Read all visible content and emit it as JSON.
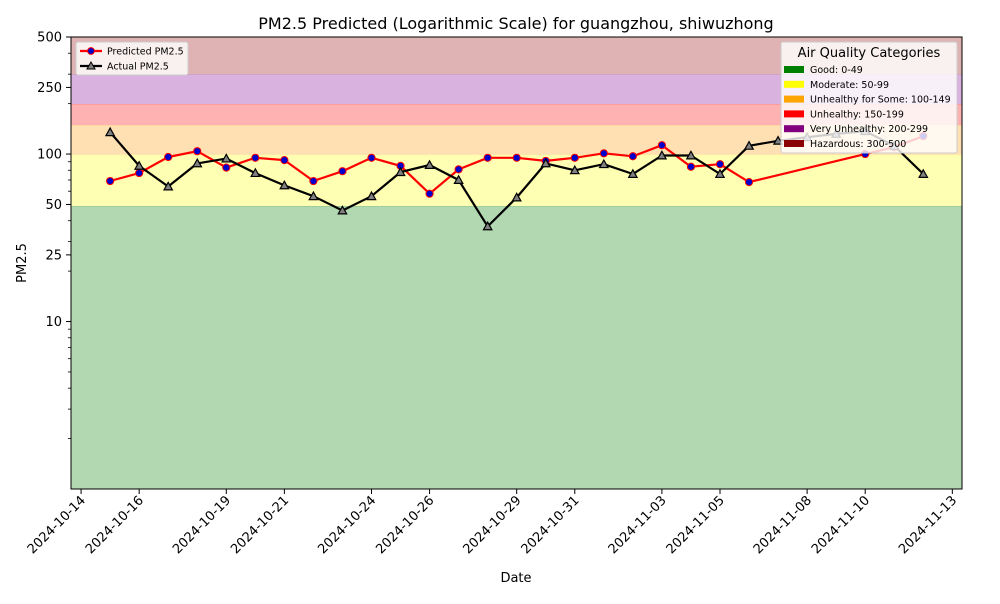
{
  "chart_data": {
    "type": "line",
    "title": "PM2.5 Predicted (Logarithmic Scale) for guangzhou, shiwuzhong",
    "xlabel": "Date",
    "ylabel": "PM2.5",
    "y_scale": "log",
    "ylim": [
      1,
      500
    ],
    "xlim": [
      "2024-10-13T15:40",
      "2024-11-13T08:00"
    ],
    "x_ticks": [
      "2024-10-14",
      "2024-10-16",
      "2024-10-19",
      "2024-10-21",
      "2024-10-24",
      "2024-10-26",
      "2024-10-29",
      "2024-10-31",
      "2024-11-03",
      "2024-11-05",
      "2024-11-08",
      "2024-11-10",
      "2024-11-13"
    ],
    "y_ticks": [
      {
        "value": 10,
        "label": "10"
      },
      {
        "value": 25,
        "label": "25"
      },
      {
        "value": 50,
        "label": "50"
      },
      {
        "value": 100,
        "label": "100"
      },
      {
        "value": 250,
        "label": "250"
      },
      {
        "value": 500,
        "label": "500"
      }
    ],
    "grid": false,
    "bands": [
      {
        "name": "Good: 0-49",
        "from": 0,
        "to": 49,
        "fill": "#b2d8b2",
        "swatch": "#008000"
      },
      {
        "name": "Moderate: 50-99",
        "from": 49,
        "to": 99,
        "fill": "#ffffb3",
        "swatch": "#ffff00"
      },
      {
        "name": "Unhealthy for Some: 100-149",
        "from": 99,
        "to": 149,
        "fill": "#ffe0b2",
        "swatch": "#ffa500"
      },
      {
        "name": "Unhealthy: 150-199",
        "from": 149,
        "to": 199,
        "fill": "#ffb2b2",
        "swatch": "#ff0000"
      },
      {
        "name": "Very Unhealthy: 200-299",
        "from": 199,
        "to": 299,
        "fill": "#d9b2e0",
        "swatch": "#800080"
      },
      {
        "name": "Hazardous: 300-500",
        "from": 299,
        "to": 500,
        "fill": "#dfb3b3",
        "swatch": "#8b0000"
      }
    ],
    "legend_placement": "top-left",
    "category_legend_title": "Air Quality Categories",
    "category_legend_placement": "top-right",
    "series": [
      {
        "name": "Predicted PM2.5",
        "color": "#ff0000",
        "marker_color": "#0000cc",
        "marker": "circle",
        "points": [
          {
            "x": "2024-10-15",
            "y": 69
          },
          {
            "x": "2024-10-16",
            "y": 77
          },
          {
            "x": "2024-10-17",
            "y": 96
          },
          {
            "x": "2024-10-18",
            "y": 104
          },
          {
            "x": "2024-10-19",
            "y": 83
          },
          {
            "x": "2024-10-20",
            "y": 95
          },
          {
            "x": "2024-10-21",
            "y": 92
          },
          {
            "x": "2024-10-22",
            "y": 69
          },
          {
            "x": "2024-10-23",
            "y": 79
          },
          {
            "x": "2024-10-24",
            "y": 95
          },
          {
            "x": "2024-10-25",
            "y": 85
          },
          {
            "x": "2024-10-26",
            "y": 58
          },
          {
            "x": "2024-10-27",
            "y": 81
          },
          {
            "x": "2024-10-28",
            "y": 95
          },
          {
            "x": "2024-10-29",
            "y": 95
          },
          {
            "x": "2024-10-30",
            "y": 91
          },
          {
            "x": "2024-10-31",
            "y": 95
          },
          {
            "x": "2024-11-01",
            "y": 101
          },
          {
            "x": "2024-11-02",
            "y": 97
          },
          {
            "x": "2024-11-03",
            "y": 113
          },
          {
            "x": "2024-11-04",
            "y": 84
          },
          {
            "x": "2024-11-05",
            "y": 87
          },
          {
            "x": "2024-11-06",
            "y": 68
          },
          {
            "x": "2024-11-10",
            "y": 100
          },
          {
            "x": "2024-11-11",
            "y": 110
          },
          {
            "x": "2024-11-12",
            "y": 128
          }
        ]
      },
      {
        "name": "Actual PM2.5",
        "color": "#000000",
        "marker_color": "#808080",
        "marker": "triangle",
        "points": [
          {
            "x": "2024-10-15",
            "y": 135
          },
          {
            "x": "2024-10-16",
            "y": 85
          },
          {
            "x": "2024-10-17",
            "y": 64
          },
          {
            "x": "2024-10-18",
            "y": 88
          },
          {
            "x": "2024-10-19",
            "y": 94
          },
          {
            "x": "2024-10-20",
            "y": 77
          },
          {
            "x": "2024-10-21",
            "y": 65
          },
          {
            "x": "2024-10-22",
            "y": 56
          },
          {
            "x": "2024-10-23",
            "y": 46
          },
          {
            "x": "2024-10-24",
            "y": 56
          },
          {
            "x": "2024-10-25",
            "y": 78
          },
          {
            "x": "2024-10-26",
            "y": 86
          },
          {
            "x": "2024-10-27",
            "y": 70
          },
          {
            "x": "2024-10-28",
            "y": 37
          },
          {
            "x": "2024-10-29",
            "y": 55
          },
          {
            "x": "2024-10-30",
            "y": 88
          },
          {
            "x": "2024-10-31",
            "y": 80
          },
          {
            "x": "2024-11-01",
            "y": 87
          },
          {
            "x": "2024-11-02",
            "y": 76
          },
          {
            "x": "2024-11-03",
            "y": 98
          },
          {
            "x": "2024-11-04",
            "y": 98
          },
          {
            "x": "2024-11-05",
            "y": 76
          },
          {
            "x": "2024-11-06",
            "y": 112
          },
          {
            "x": "2024-11-07",
            "y": 120
          },
          {
            "x": "2024-11-08",
            "y": 126
          },
          {
            "x": "2024-11-09",
            "y": 132
          },
          {
            "x": "2024-11-10",
            "y": 137
          },
          {
            "x": "2024-11-11",
            "y": 112
          },
          {
            "x": "2024-11-12",
            "y": 76
          }
        ]
      }
    ]
  }
}
